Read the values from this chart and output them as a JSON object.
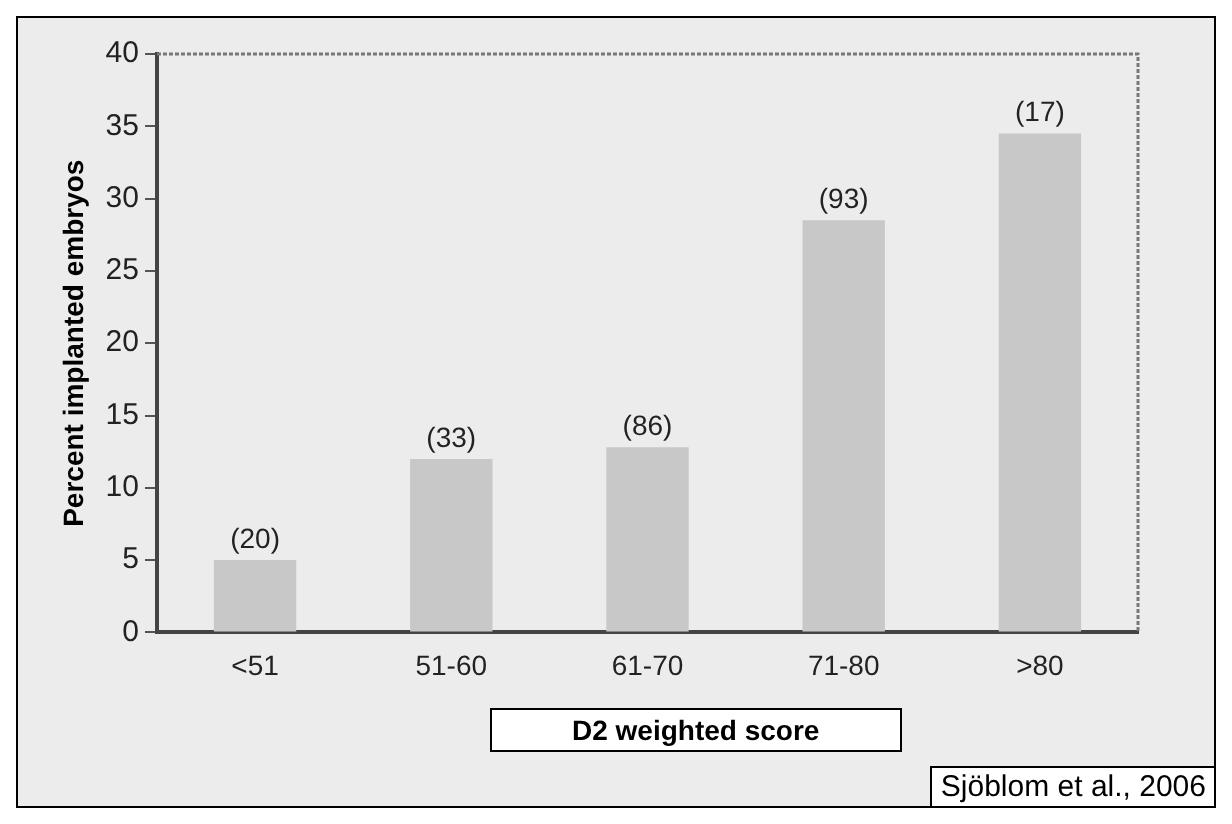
{
  "chart_data": {
    "type": "bar",
    "categories": [
      "<51",
      "51-60",
      "61-70",
      "71-80",
      ">80"
    ],
    "values": [
      5,
      12,
      12.8,
      28.5,
      34.5
    ],
    "color": "#c8c8c8",
    "ylabel": "Percent implanted embryos",
    "xlabel": "D2 weighted score",
    "ylim": [
      0,
      40
    ],
    "yticks": [
      0,
      5,
      10,
      15,
      20,
      25,
      30,
      35,
      40
    ],
    "grid": false,
    "annotations": [
      {
        "text": "(20)",
        "x": "<51",
        "y": 5
      },
      {
        "text": "(33)",
        "x": "51-60",
        "y": 12
      },
      {
        "text": "(86)",
        "x": "61-70",
        "y": 12.8
      },
      {
        "text": "(93)",
        "x": "71-80",
        "y": 28.5
      },
      {
        "text": "(17)",
        "x": ">80",
        "y": 34.5
      },
      "Sjöblom et al., 2006"
    ]
  }
}
